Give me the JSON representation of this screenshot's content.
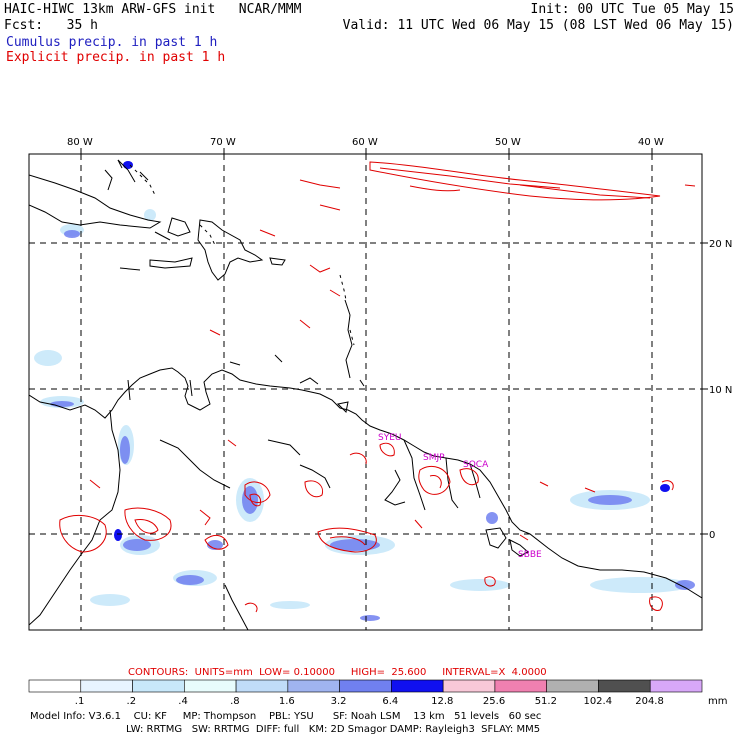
{
  "header": {
    "model_line": "HAIC-HIWC 13km ARW-GFS init   NCAR/MMM",
    "fcst_line": "Fcst:   35 h",
    "init_line": "Init: 00 UTC Tue 05 May 15",
    "valid_line": "Valid: 11 UTC Wed 06 May 15 (08 LST Wed 06 May 15)",
    "legend_cumulus": "Cumulus precip. in past 1 h",
    "legend_explicit": "Explicit precip. in past 1 h"
  },
  "colors": {
    "cumulus": "#2020c0",
    "explicit": "#e00000",
    "station_label": "#cc00cc",
    "contour_info": "#e00000"
  },
  "map": {
    "lon_labels": [
      "80 W",
      "70 W",
      "60 W",
      "50 W",
      "40 W"
    ],
    "lat_labels": [
      "20 N",
      "10 N",
      "0"
    ],
    "stations": [
      {
        "id": "SYEU",
        "lon": -57.0,
        "lat": 6.8
      },
      {
        "id": "SMJP",
        "lon": -55.2,
        "lat": 5.3
      },
      {
        "id": "SOCA",
        "lon": -52.4,
        "lat": 4.8
      },
      {
        "id": "SBBE",
        "lon": -48.5,
        "lat": -1.4
      }
    ]
  },
  "contour_info": {
    "label": "CONTOURS:  UNITS=mm  LOW= 0.10000     HIGH=  25.600     INTERVAL=X  4.0000"
  },
  "colorbar": {
    "units": "mm",
    "ticks": [
      ".1",
      ".2",
      ".4",
      ".8",
      "1.6",
      "3.2",
      "6.4",
      "12.8",
      "25.6",
      "51.2",
      "102.4",
      "204.8"
    ],
    "colors": [
      "#ffffff",
      "#e8f4ff",
      "#c8e8fa",
      "#e8fcfc",
      "#c0dcf8",
      "#a0b4f0",
      "#7080f0",
      "#1010f0",
      "#f8c8d8",
      "#f080b0",
      "#b0b0b0",
      "#505050",
      "#d8a8f8"
    ]
  },
  "footer": {
    "line1": "Model Info: V3.6.1    CU: KF     MP: Thompson    PBL: YSU      SF: Noah LSM    13 km   51 levels   60 sec",
    "line2": "LW: RRTMG   SW: RRTMG  DIFF: full   KM: 2D Smagor DAMP: Rayleigh3  SFLAY: MM5"
  }
}
